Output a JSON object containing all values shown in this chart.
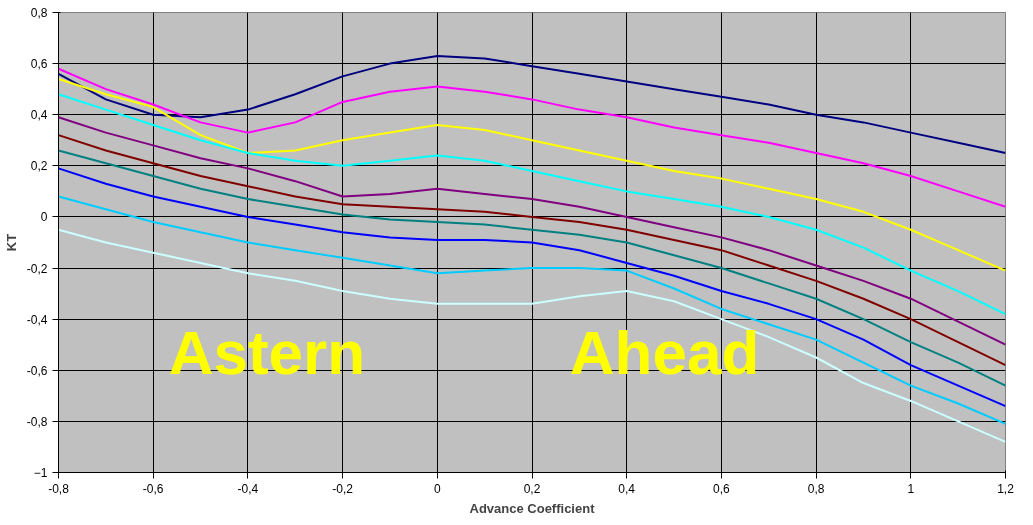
{
  "chart_data": {
    "type": "line",
    "xlabel": "Advance Coefficient",
    "ylabel": "KT",
    "x": [
      -0.8,
      -0.7,
      -0.6,
      -0.5,
      -0.4,
      -0.3,
      -0.2,
      -0.1,
      0,
      0.1,
      0.2,
      0.3,
      0.4,
      0.5,
      0.6,
      0.7,
      0.8,
      0.9,
      1.0,
      1.1,
      1.2
    ],
    "series": [
      {
        "color": "#000080",
        "values": [
          0.56,
          0.46,
          0.4,
          0.39,
          0.42,
          0.48,
          0.55,
          0.6,
          0.63,
          0.62,
          0.59,
          0.56,
          0.53,
          0.5,
          0.47,
          0.44,
          0.4,
          0.37,
          0.33,
          0.29,
          0.25
        ]
      },
      {
        "color": "#ff00ff",
        "values": [
          0.58,
          0.5,
          0.44,
          0.37,
          0.33,
          0.37,
          0.45,
          0.49,
          0.51,
          0.49,
          0.46,
          0.42,
          0.39,
          0.35,
          0.32,
          0.29,
          0.25,
          0.21,
          0.16,
          0.1,
          0.04
        ]
      },
      {
        "color": "#ffff00",
        "values": [
          0.54,
          0.48,
          0.43,
          0.32,
          0.25,
          0.26,
          0.3,
          0.33,
          0.36,
          0.34,
          0.3,
          0.26,
          0.22,
          0.18,
          0.15,
          0.11,
          0.07,
          0.02,
          -0.05,
          -0.13,
          -0.21
        ]
      },
      {
        "color": "#00ffff",
        "values": [
          0.48,
          0.42,
          0.36,
          0.3,
          0.25,
          0.22,
          0.2,
          0.22,
          0.24,
          0.22,
          0.18,
          0.14,
          0.1,
          0.07,
          0.04,
          0.0,
          -0.05,
          -0.12,
          -0.21,
          -0.29,
          -0.38
        ]
      },
      {
        "color": "#800080",
        "values": [
          0.39,
          0.33,
          0.28,
          0.23,
          0.19,
          0.14,
          0.08,
          0.09,
          0.11,
          0.09,
          0.07,
          0.04,
          0.0,
          -0.04,
          -0.08,
          -0.13,
          -0.19,
          -0.25,
          -0.32,
          -0.41,
          -0.5
        ]
      },
      {
        "color": "#800000",
        "values": [
          0.32,
          0.26,
          0.21,
          0.16,
          0.12,
          0.08,
          0.05,
          0.04,
          0.03,
          0.02,
          0.0,
          -0.02,
          -0.05,
          -0.09,
          -0.13,
          -0.19,
          -0.25,
          -0.32,
          -0.4,
          -0.49,
          -0.58
        ]
      },
      {
        "color": "#008080",
        "values": [
          0.26,
          0.21,
          0.16,
          0.11,
          0.07,
          0.04,
          0.01,
          -0.01,
          -0.02,
          -0.03,
          -0.05,
          -0.07,
          -0.1,
          -0.15,
          -0.2,
          -0.26,
          -0.32,
          -0.4,
          -0.49,
          -0.57,
          -0.66
        ]
      },
      {
        "color": "#0000ff",
        "values": [
          0.19,
          0.13,
          0.08,
          0.04,
          0.0,
          -0.03,
          -0.06,
          -0.08,
          -0.09,
          -0.09,
          -0.1,
          -0.13,
          -0.18,
          -0.23,
          -0.29,
          -0.34,
          -0.4,
          -0.48,
          -0.58,
          -0.66,
          -0.74
        ]
      },
      {
        "color": "#00ccff",
        "values": [
          0.08,
          0.03,
          -0.02,
          -0.06,
          -0.1,
          -0.13,
          -0.16,
          -0.19,
          -0.22,
          -0.21,
          -0.2,
          -0.2,
          -0.21,
          -0.28,
          -0.36,
          -0.42,
          -0.48,
          -0.57,
          -0.66,
          -0.73,
          -0.81
        ]
      },
      {
        "color": "#ccffff",
        "values": [
          -0.05,
          -0.1,
          -0.14,
          -0.18,
          -0.22,
          -0.25,
          -0.29,
          -0.32,
          -0.34,
          -0.34,
          -0.34,
          -0.31,
          -0.29,
          -0.33,
          -0.4,
          -0.47,
          -0.55,
          -0.65,
          -0.72,
          -0.8,
          -0.88
        ]
      }
    ],
    "xlim": [
      -0.8,
      1.2
    ],
    "ylim": [
      -1,
      0.8
    ],
    "xticks": [
      {
        "value": -0.8,
        "label": "-0,8"
      },
      {
        "value": -0.6,
        "label": "-0,6"
      },
      {
        "value": -0.4,
        "label": "-0,4"
      },
      {
        "value": -0.2,
        "label": "-0,2"
      },
      0,
      {
        "value": 0.2,
        "label": "0,2"
      },
      {
        "value": 0.4,
        "label": "0,4"
      },
      {
        "value": 0.6,
        "label": "0,6"
      },
      {
        "value": 0.8,
        "label": "0,8"
      },
      1,
      {
        "value": 1.2,
        "label": "1,2"
      }
    ],
    "yticks": [
      -1,
      {
        "value": -0.8,
        "label": "-0,8"
      },
      {
        "value": -0.6,
        "label": "-0,6"
      },
      {
        "value": -0.4,
        "label": "-0,4"
      },
      {
        "value": -0.2,
        "label": "-0,2"
      },
      0,
      {
        "value": 0.2,
        "label": "0,2"
      },
      {
        "value": 0.4,
        "label": "0,4"
      },
      {
        "value": 0.6,
        "label": "0,6"
      },
      {
        "value": 0.8,
        "label": "0,8"
      }
    ],
    "grid": true,
    "annotations": [
      "Astern",
      "Ahead"
    ]
  }
}
